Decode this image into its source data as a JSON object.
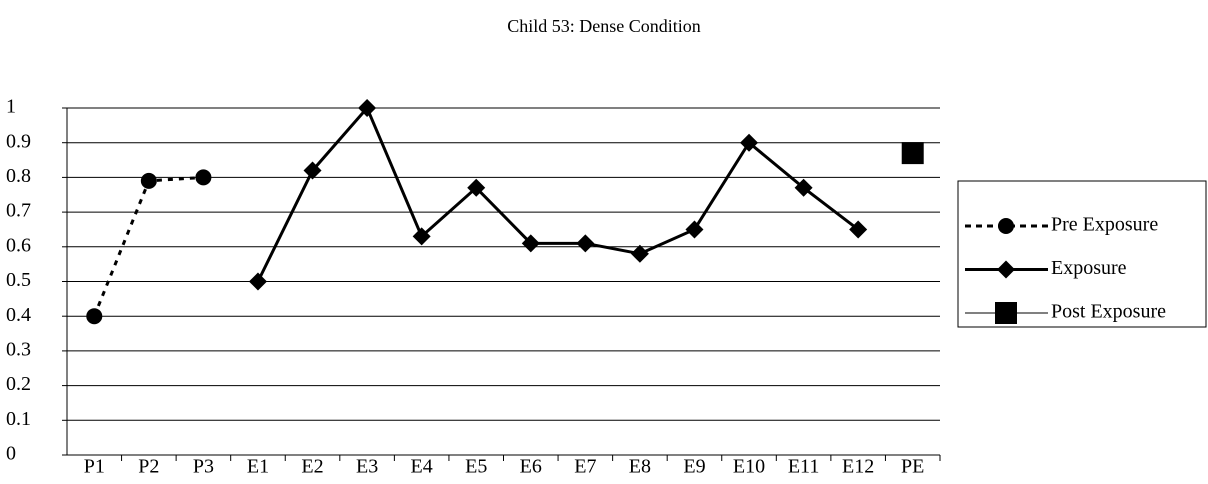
{
  "chart_data": {
    "type": "line",
    "title": "Child 53: Dense Condition",
    "categories": [
      "P1",
      "P2",
      "P3",
      "E1",
      "E2",
      "E3",
      "E4",
      "E5",
      "E6",
      "E7",
      "E8",
      "E9",
      "E10",
      "E11",
      "E12",
      "PE"
    ],
    "series": [
      {
        "name": "Pre Exposure",
        "color": "#000000",
        "marker": "circle",
        "linestyle": "dashed",
        "values": [
          0.4,
          0.79,
          0.8,
          null,
          null,
          null,
          null,
          null,
          null,
          null,
          null,
          null,
          null,
          null,
          null,
          null
        ]
      },
      {
        "name": "Exposure",
        "color": "#000000",
        "marker": "diamond",
        "linestyle": "solid",
        "values": [
          null,
          null,
          null,
          0.5,
          0.82,
          1,
          0.63,
          0.77,
          0.61,
          0.61,
          0.58,
          0.65,
          0.9,
          0.77,
          0.65,
          null
        ]
      },
      {
        "name": "Post Exposure",
        "color": "#000000",
        "marker": "square",
        "linestyle": "solid",
        "values": [
          null,
          null,
          null,
          null,
          null,
          null,
          null,
          null,
          null,
          null,
          null,
          null,
          null,
          null,
          null,
          0.87
        ]
      }
    ],
    "ylim": [
      0,
      1
    ],
    "yticks": [
      0,
      0.1,
      0.2,
      0.3,
      0.4,
      0.5,
      0.6,
      0.7,
      0.8,
      0.9,
      1
    ],
    "grid": true,
    "legend": "right"
  }
}
